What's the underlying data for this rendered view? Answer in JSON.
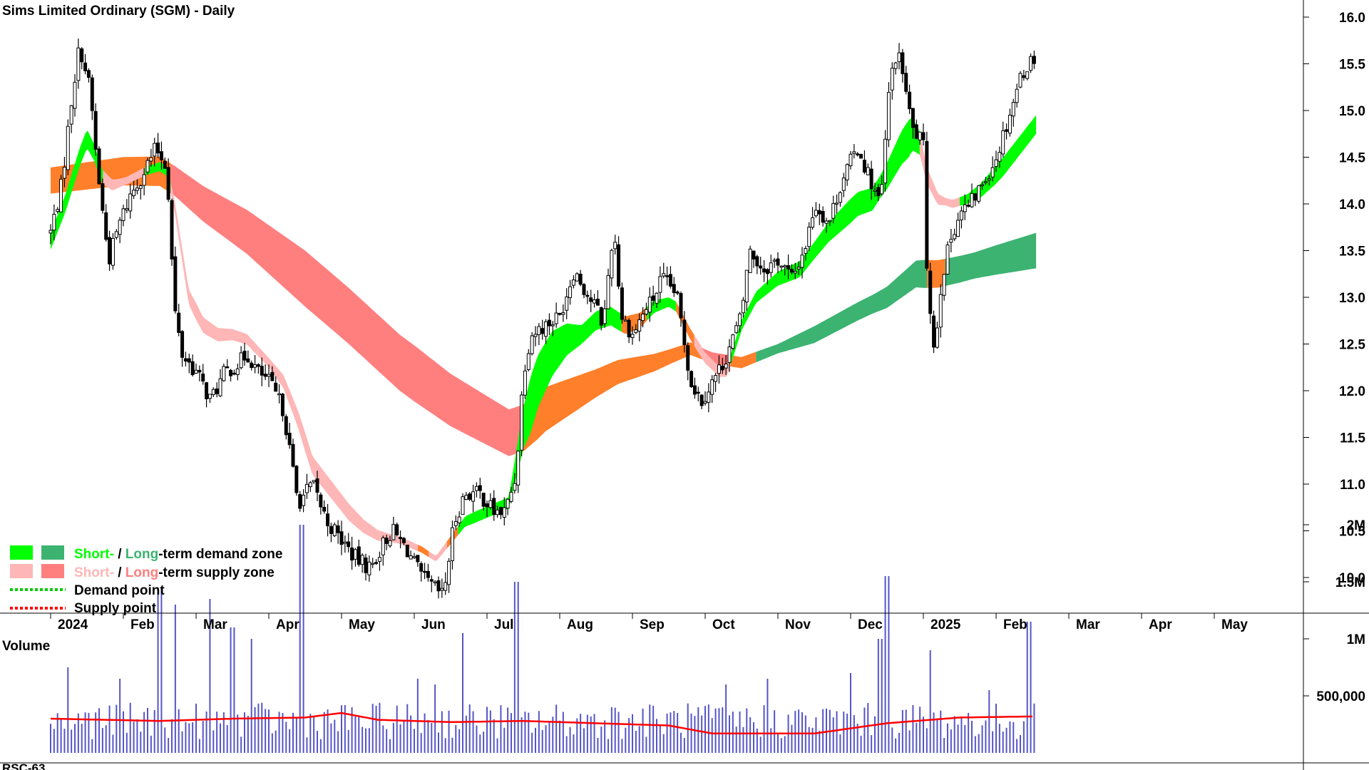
{
  "title": "Sims Limited Ordinary (SGM) - Daily",
  "volume_label": "Volume",
  "bottom_panel_label": "RSC-63",
  "legend": {
    "demand_short": "Short-",
    "demand_slash": " / ",
    "demand_long": "Long",
    "demand_rest": "-term demand zone",
    "supply_short": "Short-",
    "supply_slash": " / ",
    "supply_long": "Long",
    "supply_rest": "-term supply zone",
    "demand_point": "Demand point",
    "supply_point": "Supply point"
  },
  "colors": {
    "short_demand": "#00ff00",
    "long_demand": "#3cb371",
    "short_supply": "#ffb6b6",
    "long_supply": "#ff7f7f",
    "transition": "#ff7f2a",
    "volume_bar": "#5555c8",
    "volume_ma": "#ff0000",
    "demand_point": "#00cc00",
    "supply_point": "#ff0000",
    "volume_text": "#7070b0"
  },
  "chart_data": {
    "type": "candlestick",
    "title": "Sims Limited Ordinary (SGM) - Daily",
    "x_tick_labels": [
      "2024",
      "Feb",
      "Mar",
      "Apr",
      "May",
      "Jun",
      "Jul",
      "Aug",
      "Sep",
      "Oct",
      "Nov",
      "Dec",
      "2025",
      "Feb",
      "Mar",
      "Apr",
      "May"
    ],
    "price_axis": {
      "ticks": [
        10.0,
        10.5,
        11.0,
        11.5,
        12.0,
        12.5,
        13.0,
        13.5,
        14.0,
        14.5,
        15.0,
        15.5,
        16.0
      ],
      "ylim": [
        9.6,
        16.1
      ]
    },
    "volume_axis": {
      "ticks": [
        {
          "value": 500000,
          "label": "500,000"
        },
        {
          "value": 1000000,
          "label": "1M"
        },
        {
          "value": 1500000,
          "label": "1.5M"
        },
        {
          "value": 2000000,
          "label": "2M"
        }
      ],
      "ylim": [
        0,
        2000000
      ]
    },
    "price_path": [
      [
        -0.5,
        13.7
      ],
      [
        -0.35,
        14.2
      ],
      [
        -0.2,
        15.2
      ],
      [
        -0.1,
        15.7
      ],
      [
        0.05,
        15.2
      ],
      [
        0.1,
        14.7
      ],
      [
        0.2,
        14.0
      ],
      [
        0.3,
        13.4
      ],
      [
        0.45,
        13.8
      ],
      [
        0.6,
        14.1
      ],
      [
        0.75,
        14.3
      ],
      [
        0.95,
        14.6
      ],
      [
        1.1,
        14.4
      ],
      [
        1.2,
        12.9
      ],
      [
        1.3,
        12.4
      ],
      [
        1.5,
        12.2
      ],
      [
        1.7,
        11.9
      ],
      [
        1.9,
        12.2
      ],
      [
        2.1,
        12.3
      ],
      [
        2.2,
        12.4
      ],
      [
        2.35,
        12.2
      ],
      [
        2.5,
        12.1
      ],
      [
        2.6,
        11.95
      ],
      [
        2.7,
        11.8
      ],
      [
        2.9,
        10.8
      ],
      [
        3.1,
        11.0
      ],
      [
        3.3,
        10.6
      ],
      [
        3.5,
        10.4
      ],
      [
        3.7,
        10.2
      ],
      [
        3.9,
        10.1
      ],
      [
        4.1,
        10.4
      ],
      [
        4.2,
        10.5
      ],
      [
        4.4,
        10.3
      ],
      [
        4.6,
        10.0
      ],
      [
        4.75,
        9.9
      ],
      [
        4.9,
        9.8
      ],
      [
        5.05,
        10.6
      ],
      [
        5.2,
        10.9
      ],
      [
        5.4,
        10.9
      ],
      [
        5.6,
        10.7
      ],
      [
        5.75,
        10.7
      ],
      [
        5.9,
        11.1
      ],
      [
        6.0,
        12.2
      ],
      [
        6.1,
        12.6
      ],
      [
        6.3,
        12.7
      ],
      [
        6.5,
        12.8
      ],
      [
        6.7,
        13.3
      ],
      [
        6.9,
        13.0
      ],
      [
        7.0,
        12.9
      ],
      [
        7.1,
        12.7
      ],
      [
        7.2,
        13.5
      ],
      [
        7.25,
        13.7
      ],
      [
        7.35,
        12.8
      ],
      [
        7.5,
        12.6
      ],
      [
        7.7,
        12.9
      ],
      [
        7.8,
        13.0
      ],
      [
        7.9,
        13.2
      ],
      [
        8.1,
        13.05
      ],
      [
        8.2,
        12.6
      ],
      [
        8.3,
        12.1
      ],
      [
        8.45,
        11.9
      ],
      [
        8.6,
        12.1
      ],
      [
        8.75,
        12.3
      ],
      [
        8.9,
        12.6
      ],
      [
        9.0,
        12.8
      ],
      [
        9.1,
        13.5
      ],
      [
        9.3,
        13.3
      ],
      [
        9.5,
        13.4
      ],
      [
        9.7,
        13.2
      ],
      [
        9.9,
        13.6
      ],
      [
        10.0,
        14.0
      ],
      [
        10.2,
        13.8
      ],
      [
        10.4,
        14.3
      ],
      [
        10.6,
        14.6
      ],
      [
        10.8,
        14.2
      ],
      [
        10.9,
        14.0
      ],
      [
        10.95,
        14.3
      ],
      [
        11.0,
        15.0
      ],
      [
        11.1,
        15.6
      ],
      [
        11.2,
        15.5
      ],
      [
        11.3,
        15.0
      ],
      [
        11.35,
        14.8
      ],
      [
        11.45,
        14.7
      ],
      [
        11.5,
        14.6
      ],
      [
        11.55,
        13.3
      ],
      [
        11.65,
        12.4
      ],
      [
        11.75,
        13.2
      ],
      [
        11.9,
        13.7
      ],
      [
        12.0,
        13.9
      ],
      [
        12.15,
        14.0
      ],
      [
        12.3,
        14.2
      ],
      [
        12.5,
        14.5
      ],
      [
        12.7,
        15.0
      ],
      [
        12.85,
        15.4
      ],
      [
        12.95,
        15.5
      ],
      [
        13.05,
        15.6
      ]
    ],
    "short_band": {
      "centre": [
        [
          -0.5,
          13.6
        ],
        [
          -0.3,
          14.0
        ],
        [
          -0.1,
          14.5
        ],
        [
          0.0,
          14.7
        ],
        [
          0.1,
          14.55
        ],
        [
          0.2,
          14.3
        ],
        [
          0.35,
          14.2
        ],
        [
          0.55,
          14.25
        ],
        [
          0.8,
          14.35
        ],
        [
          1.0,
          14.4
        ],
        [
          1.1,
          14.35
        ],
        [
          1.2,
          14.0
        ],
        [
          1.4,
          13.0
        ],
        [
          1.6,
          12.7
        ],
        [
          1.8,
          12.6
        ],
        [
          2.0,
          12.6
        ],
        [
          2.2,
          12.55
        ],
        [
          2.5,
          12.3
        ],
        [
          2.7,
          12.1
        ],
        [
          2.9,
          11.7
        ],
        [
          3.1,
          11.2
        ],
        [
          3.4,
          10.9
        ],
        [
          3.6,
          10.7
        ],
        [
          3.8,
          10.55
        ],
        [
          4.0,
          10.45
        ],
        [
          4.3,
          10.4
        ],
        [
          4.6,
          10.3
        ],
        [
          4.8,
          10.2
        ],
        [
          5.0,
          10.4
        ],
        [
          5.2,
          10.6
        ],
        [
          5.5,
          10.7
        ],
        [
          5.8,
          10.8
        ],
        [
          6.0,
          11.6
        ],
        [
          6.2,
          12.1
        ],
        [
          6.4,
          12.4
        ],
        [
          6.6,
          12.55
        ],
        [
          6.8,
          12.6
        ],
        [
          7.0,
          12.75
        ],
        [
          7.2,
          12.8
        ],
        [
          7.4,
          12.7
        ],
        [
          7.6,
          12.75
        ],
        [
          7.8,
          12.9
        ],
        [
          8.0,
          12.95
        ],
        [
          8.1,
          12.9
        ],
        [
          8.3,
          12.6
        ],
        [
          8.5,
          12.35
        ],
        [
          8.7,
          12.2
        ],
        [
          8.8,
          12.2
        ],
        [
          9.0,
          12.7
        ],
        [
          9.2,
          13.0
        ],
        [
          9.5,
          13.2
        ],
        [
          9.8,
          13.3
        ],
        [
          10.0,
          13.5
        ],
        [
          10.2,
          13.7
        ],
        [
          10.4,
          13.85
        ],
        [
          10.6,
          14.0
        ],
        [
          10.8,
          14.05
        ],
        [
          11.0,
          14.3
        ],
        [
          11.2,
          14.6
        ],
        [
          11.35,
          14.75
        ],
        [
          11.45,
          14.65
        ],
        [
          11.55,
          14.3
        ],
        [
          11.7,
          14.05
        ],
        [
          11.9,
          14.0
        ],
        [
          12.1,
          14.05
        ],
        [
          12.3,
          14.15
        ],
        [
          12.6,
          14.4
        ],
        [
          12.85,
          14.65
        ],
        [
          13.05,
          14.85
        ]
      ],
      "half_width": [
        [
          -0.5,
          0.09
        ],
        [
          0.0,
          0.1
        ],
        [
          0.5,
          0.04
        ],
        [
          1.1,
          0.05
        ],
        [
          1.5,
          0.09
        ],
        [
          2.0,
          0.06
        ],
        [
          2.5,
          0.05
        ],
        [
          3.0,
          0.1
        ],
        [
          3.6,
          0.09
        ],
        [
          4.2,
          0.04
        ],
        [
          4.8,
          0.03
        ],
        [
          5.3,
          0.06
        ],
        [
          5.8,
          0.06
        ],
        [
          6.1,
          0.3
        ],
        [
          6.4,
          0.24
        ],
        [
          6.8,
          0.1
        ],
        [
          7.2,
          0.1
        ],
        [
          7.5,
          0.09
        ],
        [
          8.0,
          0.05
        ],
        [
          8.4,
          0.06
        ],
        [
          8.8,
          0.05
        ],
        [
          9.2,
          0.06
        ],
        [
          9.6,
          0.08
        ],
        [
          10.0,
          0.09
        ],
        [
          10.5,
          0.13
        ],
        [
          10.9,
          0.12
        ],
        [
          11.3,
          0.2
        ],
        [
          11.5,
          0.1
        ],
        [
          11.8,
          0.04
        ],
        [
          12.1,
          0.05
        ],
        [
          12.5,
          0.1
        ],
        [
          13.05,
          0.1
        ]
      ],
      "color_segments": [
        {
          "x0": -0.5,
          "x1": 0.22,
          "color": "short_demand"
        },
        {
          "x0": 0.22,
          "x1": 0.8,
          "color": "short_supply"
        },
        {
          "x0": 0.8,
          "x1": 1.15,
          "color": "short_demand"
        },
        {
          "x0": 1.15,
          "x1": 2.35,
          "color": "short_supply"
        },
        {
          "x0": 2.35,
          "x1": 2.85,
          "color": "short_supply"
        },
        {
          "x0": 2.85,
          "x1": 4.55,
          "color": "short_supply"
        },
        {
          "x0": 4.55,
          "x1": 4.7,
          "color": "transition"
        },
        {
          "x0": 4.7,
          "x1": 4.95,
          "color": "short_supply"
        },
        {
          "x0": 4.95,
          "x1": 5.1,
          "color": "transition"
        },
        {
          "x0": 5.1,
          "x1": 7.35,
          "color": "short_demand"
        },
        {
          "x0": 7.35,
          "x1": 7.7,
          "color": "transition"
        },
        {
          "x0": 7.7,
          "x1": 8.1,
          "color": "short_demand"
        },
        {
          "x0": 8.1,
          "x1": 8.35,
          "color": "transition"
        },
        {
          "x0": 8.35,
          "x1": 8.85,
          "color": "short_supply"
        },
        {
          "x0": 8.85,
          "x1": 11.45,
          "color": "short_demand"
        },
        {
          "x0": 11.45,
          "x1": 12.0,
          "color": "short_supply"
        },
        {
          "x0": 12.0,
          "x1": 13.05,
          "color": "short_demand"
        }
      ]
    },
    "long_band": {
      "centre": [
        [
          -0.5,
          14.25
        ],
        [
          0.5,
          14.35
        ],
        [
          1.0,
          14.35
        ],
        [
          1.2,
          14.25
        ],
        [
          1.6,
          14.0
        ],
        [
          2.2,
          13.7
        ],
        [
          3.0,
          13.2
        ],
        [
          3.6,
          12.8
        ],
        [
          4.3,
          12.3
        ],
        [
          5.0,
          11.9
        ],
        [
          5.8,
          11.55
        ],
        [
          6.0,
          11.6
        ],
        [
          6.3,
          11.8
        ],
        [
          6.8,
          12.0
        ],
        [
          7.3,
          12.2
        ],
        [
          7.8,
          12.3
        ],
        [
          8.3,
          12.45
        ],
        [
          8.6,
          12.35
        ],
        [
          9.0,
          12.3
        ],
        [
          9.5,
          12.45
        ],
        [
          10.0,
          12.6
        ],
        [
          10.6,
          12.85
        ],
        [
          11.0,
          13.0
        ],
        [
          11.4,
          13.25
        ],
        [
          11.7,
          13.25
        ],
        [
          12.0,
          13.3
        ],
        [
          12.5,
          13.4
        ],
        [
          13.05,
          13.5
        ]
      ],
      "half_width": [
        [
          -0.5,
          0.14
        ],
        [
          1.2,
          0.16
        ],
        [
          2.0,
          0.22
        ],
        [
          3.0,
          0.3
        ],
        [
          4.5,
          0.3
        ],
        [
          5.8,
          0.25
        ],
        [
          6.2,
          0.25
        ],
        [
          7.0,
          0.15
        ],
        [
          8.0,
          0.08
        ],
        [
          8.5,
          0.06
        ],
        [
          9.0,
          0.06
        ],
        [
          9.5,
          0.05
        ],
        [
          10.0,
          0.09
        ],
        [
          10.8,
          0.1
        ],
        [
          11.5,
          0.15
        ],
        [
          12.2,
          0.14
        ],
        [
          13.05,
          0.19
        ]
      ],
      "color_segments": [
        {
          "x0": -0.5,
          "x1": 1.15,
          "color": "transition"
        },
        {
          "x0": 1.15,
          "x1": 5.95,
          "color": "long_supply"
        },
        {
          "x0": 5.95,
          "x1": 8.45,
          "color": "transition"
        },
        {
          "x0": 8.45,
          "x1": 8.85,
          "color": "long_supply"
        },
        {
          "x0": 8.85,
          "x1": 9.2,
          "color": "transition"
        },
        {
          "x0": 9.2,
          "x1": 11.55,
          "color": "long_demand"
        },
        {
          "x0": 11.55,
          "x1": 11.8,
          "color": "transition"
        },
        {
          "x0": 11.8,
          "x1": 13.05,
          "color": "long_demand"
        }
      ]
    },
    "volume_ma": [
      [
        -0.5,
        300000
      ],
      [
        1.0,
        280000
      ],
      [
        2.0,
        300000
      ],
      [
        3.0,
        310000
      ],
      [
        3.5,
        350000
      ],
      [
        4.0,
        290000
      ],
      [
        5.0,
        270000
      ],
      [
        6.0,
        280000
      ],
      [
        7.0,
        260000
      ],
      [
        8.0,
        240000
      ],
      [
        8.6,
        170000
      ],
      [
        9.0,
        170000
      ],
      [
        10.0,
        170000
      ],
      [
        11.0,
        260000
      ],
      [
        12.0,
        310000
      ],
      [
        13.05,
        320000
      ]
    ],
    "volume_spikes": [
      [
        -0.25,
        750000
      ],
      [
        0.45,
        650000
      ],
      [
        1.0,
        1450000
      ],
      [
        1.2,
        1300000
      ],
      [
        1.7,
        1350000
      ],
      [
        2.0,
        1100000
      ],
      [
        2.25,
        1000000
      ],
      [
        2.95,
        2000000
      ],
      [
        4.55,
        650000
      ],
      [
        4.8,
        600000
      ],
      [
        5.15,
        1050000
      ],
      [
        5.9,
        1500000
      ],
      [
        7.2,
        400000
      ],
      [
        8.4,
        400000
      ],
      [
        8.8,
        600000
      ],
      [
        9.35,
        650000
      ],
      [
        10.5,
        700000
      ],
      [
        10.9,
        1000000
      ],
      [
        11.0,
        1550000
      ],
      [
        11.6,
        900000
      ],
      [
        12.4,
        550000
      ],
      [
        12.95,
        1150000
      ]
    ],
    "points_per_month": 21,
    "x_range": [
      -0.5,
      13.1
    ]
  }
}
